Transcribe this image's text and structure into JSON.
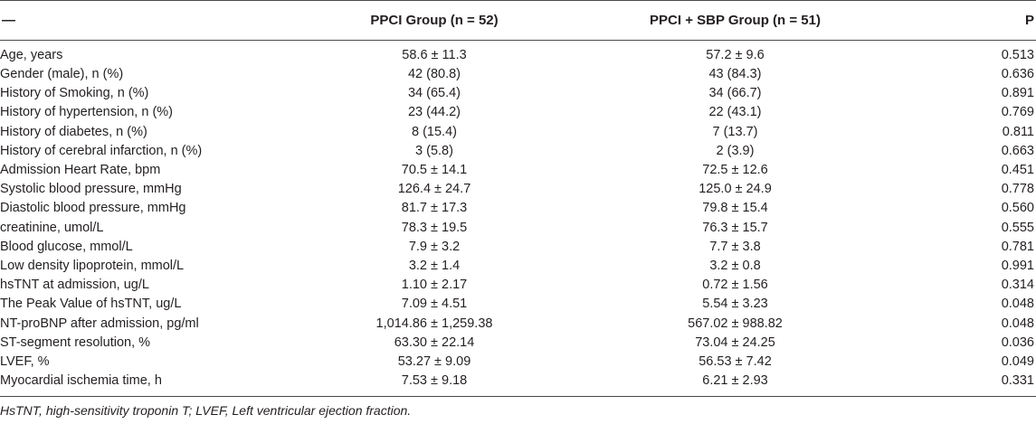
{
  "table": {
    "headers": [
      "—",
      "PPCI Group (n = 52)",
      "PPCI + SBP Group (n = 51)",
      "P"
    ],
    "rows": [
      [
        "Age, years",
        "58.6 ± 11.3",
        "57.2 ± 9.6",
        "0.513"
      ],
      [
        "Gender (male), n (%)",
        "42 (80.8)",
        "43 (84.3)",
        "0.636"
      ],
      [
        "History of Smoking, n (%)",
        "34 (65.4)",
        "34 (66.7)",
        "0.891"
      ],
      [
        "History of hypertension, n (%)",
        "23 (44.2)",
        "22 (43.1)",
        "0.769"
      ],
      [
        "History of diabetes, n (%)",
        "8 (15.4)",
        "7 (13.7)",
        "0.811"
      ],
      [
        "History of cerebral infarction, n (%)",
        "3 (5.8)",
        "2 (3.9)",
        "0.663"
      ],
      [
        "Admission Heart Rate, bpm",
        "70.5 ± 14.1",
        "72.5 ± 12.6",
        "0.451"
      ],
      [
        "Systolic blood pressure, mmHg",
        "126.4 ± 24.7",
        "125.0 ± 24.9",
        "0.778"
      ],
      [
        "Diastolic blood pressure, mmHg",
        "81.7 ± 17.3",
        "79.8 ± 15.4",
        "0.560"
      ],
      [
        "creatinine, umol/L",
        "78.3 ± 19.5",
        "76.3 ± 15.7",
        "0.555"
      ],
      [
        "Blood glucose, mmol/L",
        "7.9 ± 3.2",
        "7.7 ± 3.8",
        "0.781"
      ],
      [
        "Low density lipoprotein, mmol/L",
        "3.2 ± 1.4",
        "3.2 ± 0.8",
        "0.991"
      ],
      [
        "hsTNT at admission, ug/L",
        "1.10 ± 2.17",
        "0.72 ± 1.56",
        "0.314"
      ],
      [
        "The Peak Value of hsTNT, ug/L",
        "7.09 ± 4.51",
        "5.54 ± 3.23",
        "0.048"
      ],
      [
        "NT-proBNP after admission, pg/ml",
        "1,014.86 ± 1,259.38",
        "567.02 ± 988.82",
        "0.048"
      ],
      [
        "ST-segment resolution, %",
        "63.30 ± 22.14",
        "73.04 ± 24.25",
        "0.036"
      ],
      [
        "LVEF, %",
        "53.27 ± 9.09",
        "56.53 ± 7.42",
        "0.049"
      ],
      [
        "Myocardial ischemia time, h",
        "7.53 ± 9.18",
        "6.21 ± 2.93",
        "0.331"
      ]
    ]
  },
  "footnote": "HsTNT, high-sensitivity troponin T; LVEF, Left ventricular ejection fraction."
}
